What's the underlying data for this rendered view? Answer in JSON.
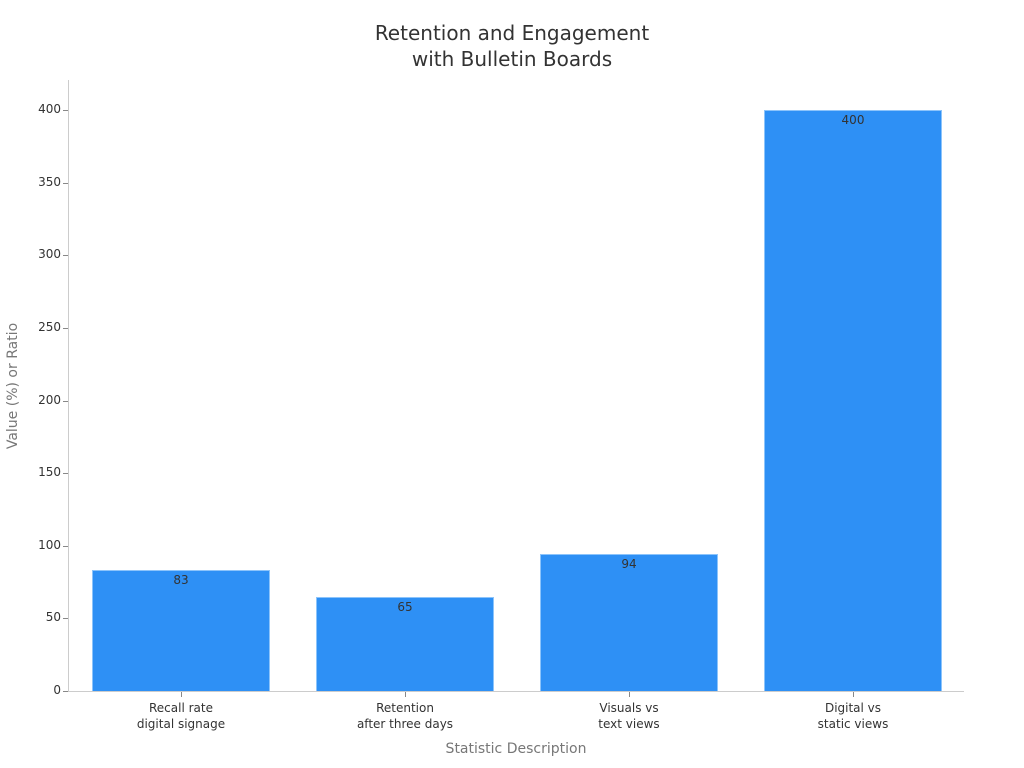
{
  "chart_data": {
    "type": "bar",
    "title": "Retention and Engagement\nwith Bulletin Boards",
    "title_lines": [
      "Retention and Engagement",
      "with Bulletin Boards"
    ],
    "xlabel": "Statistic Description",
    "ylabel": "Value (%) or Ratio",
    "categories": [
      "Recall rate\ndigital signage",
      "Retention\nafter three days",
      "Visuals vs\ntext views",
      "Digital vs\nstatic views"
    ],
    "category_lines": [
      [
        "Recall rate",
        "digital signage"
      ],
      [
        "Retention",
        "after three days"
      ],
      [
        "Visuals vs",
        "text views"
      ],
      [
        "Digital vs",
        "static views"
      ]
    ],
    "values": [
      83,
      65,
      94,
      400
    ],
    "data_labels": [
      "83",
      "65",
      "94",
      "400"
    ],
    "yticks": [
      0,
      50,
      100,
      150,
      200,
      250,
      300,
      350,
      400
    ],
    "ytick_labels": [
      "0",
      "50",
      "100",
      "150",
      "200",
      "250",
      "300",
      "350",
      "400"
    ],
    "ylim": [
      0,
      420
    ],
    "grid": false,
    "legend": null,
    "bar_color": "#2e90f5"
  }
}
